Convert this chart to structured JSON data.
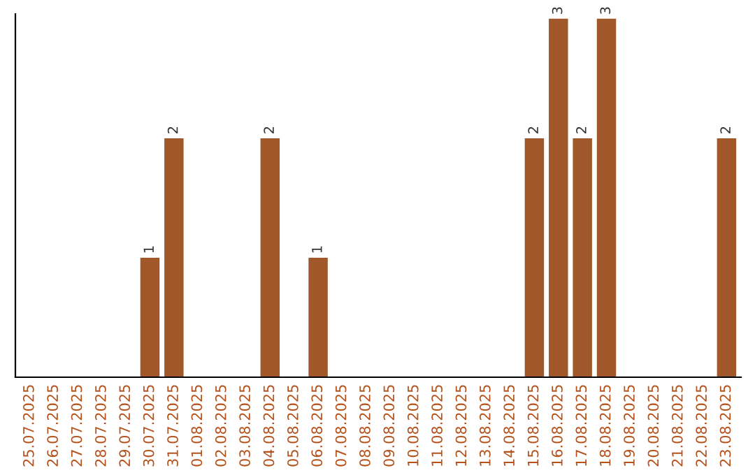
{
  "chart_data": {
    "type": "bar",
    "categories": [
      "25.07.2025",
      "26.07.2025",
      "27.07.2025",
      "28.07.2025",
      "29.07.2025",
      "30.07.2025",
      "31.07.2025",
      "01.08.2025",
      "02.08.2025",
      "03.08.2025",
      "04.08.2025",
      "05.08.2025",
      "06.08.2025",
      "07.08.2025",
      "08.08.2025",
      "09.08.2025",
      "10.08.2025",
      "11.08.2025",
      "12.08.2025",
      "13.08.2025",
      "14.08.2025",
      "15.08.2025",
      "16.08.2025",
      "17.08.2025",
      "18.08.2025",
      "19.08.2025",
      "20.08.2025",
      "21.08.2025",
      "22.08.2025",
      "23.08.2025"
    ],
    "values": [
      0,
      0,
      0,
      0,
      0,
      1,
      2,
      0,
      0,
      0,
      2,
      0,
      1,
      0,
      0,
      0,
      0,
      0,
      0,
      0,
      0,
      2,
      3,
      2,
      3,
      0,
      0,
      0,
      0,
      2
    ],
    "value_labels": [
      null,
      null,
      null,
      null,
      null,
      "1",
      "2",
      null,
      null,
      null,
      "2",
      null,
      "1",
      null,
      null,
      null,
      null,
      null,
      null,
      null,
      null,
      "2",
      "3",
      "2",
      "3",
      null,
      null,
      null,
      null,
      "2"
    ],
    "color": "#a0582a",
    "ylim": [
      0,
      3.04
    ],
    "tick_labels": "x",
    "grid": false,
    "legend": false
  }
}
